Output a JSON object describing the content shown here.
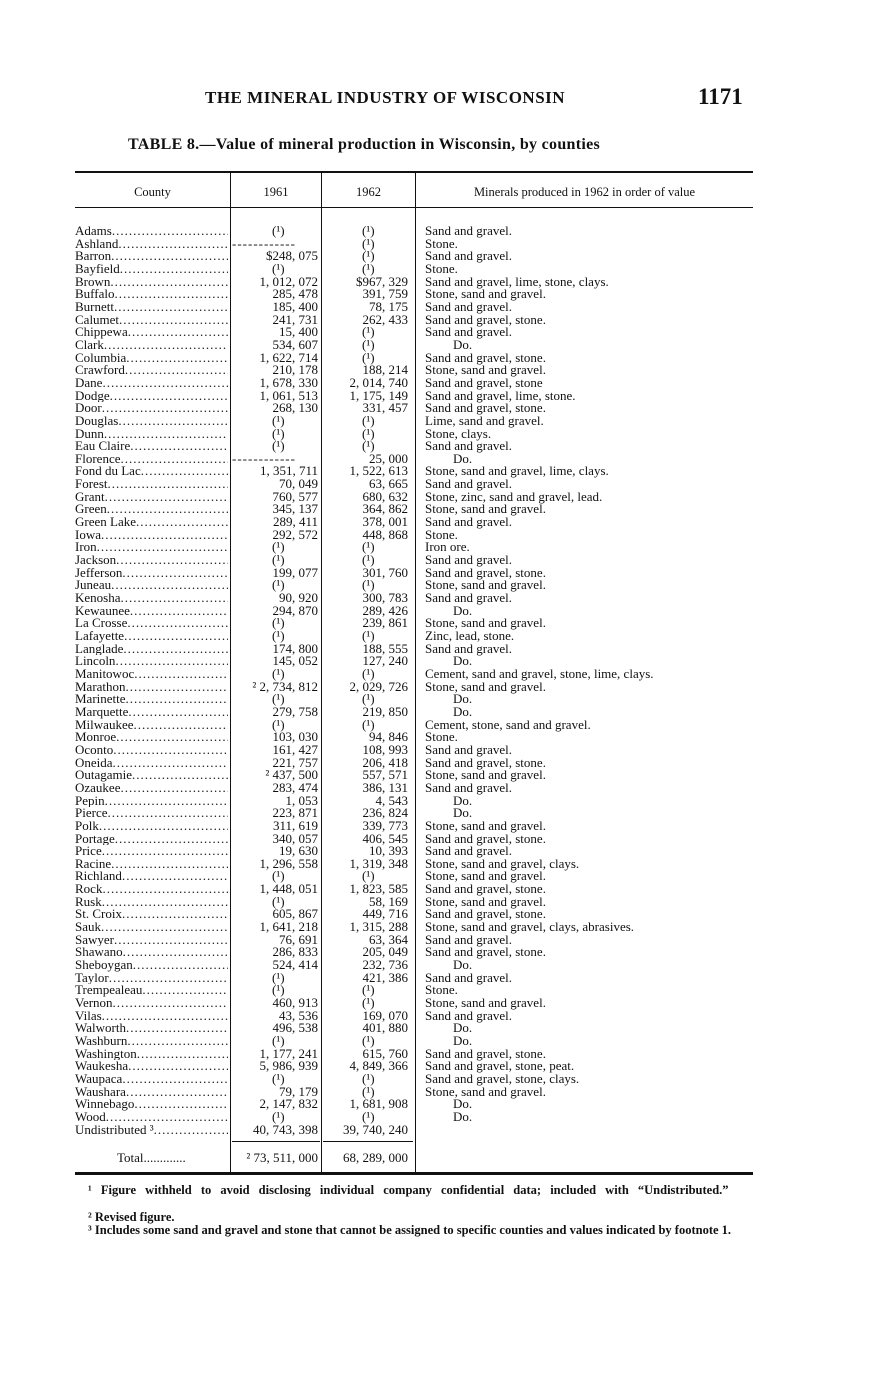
{
  "header": {
    "running_title": "THE MINERAL INDUSTRY OF WISCONSIN",
    "page_number": "1171"
  },
  "table": {
    "title": "TABLE 8.—Value of mineral production in Wisconsin, by counties",
    "columns": [
      "County",
      "1961",
      "1962",
      "Minerals produced in 1962 in order of value"
    ],
    "rows": [
      [
        "Adams",
        "(¹)",
        "(¹)",
        "Sand and gravel."
      ],
      [
        "Ashland",
        "------------",
        "(¹)",
        "Stone."
      ],
      [
        "Barron",
        "$248, 075",
        "(¹)",
        "Sand and gravel."
      ],
      [
        "Bayfield",
        "(¹)",
        "(¹)",
        "Stone."
      ],
      [
        "Brown",
        "1, 012, 072",
        "$967, 329",
        "Sand and gravel, lime, stone, clays."
      ],
      [
        "Buffalo",
        "285, 478",
        "391, 759",
        "Stone, sand and gravel."
      ],
      [
        "Burnett",
        "185, 400",
        "78, 175",
        "Sand and gravel."
      ],
      [
        "Calumet",
        "241, 731",
        "262, 433",
        "Sand and gravel, stone."
      ],
      [
        "Chippewa",
        "15, 400",
        "(¹)",
        "Sand and gravel."
      ],
      [
        "Clark",
        "534, 607",
        "(¹)",
        "Do."
      ],
      [
        "Columbia",
        "1, 622, 714",
        "(¹)",
        "Sand and gravel, stone."
      ],
      [
        "Crawford",
        "210, 178",
        "188, 214",
        "Stone, sand and gravel."
      ],
      [
        "Dane",
        "1, 678, 330",
        "2, 014, 740",
        "Sand and gravel, stone"
      ],
      [
        "Dodge",
        "1, 061, 513",
        "1, 175, 149",
        "Sand and gravel, lime, stone."
      ],
      [
        "Door",
        "268, 130",
        "331, 457",
        "Sand and gravel, stone."
      ],
      [
        "Douglas",
        "(¹)",
        "(¹)",
        "Lime, sand and gravel."
      ],
      [
        "Dunn",
        "(¹)",
        "(¹)",
        "Stone, clays."
      ],
      [
        "Eau Claire",
        "(¹)",
        "(¹)",
        "Sand and gravel."
      ],
      [
        "Florence",
        "------------",
        "25, 000",
        "Do."
      ],
      [
        "Fond du Lac",
        "1, 351, 711",
        "1, 522, 613",
        "Stone, sand and gravel, lime, clays."
      ],
      [
        "Forest",
        "70, 049",
        "63, 665",
        "Sand and gravel."
      ],
      [
        "Grant",
        "760, 577",
        "680, 632",
        "Stone, zinc, sand and gravel, lead."
      ],
      [
        "Green",
        "345, 137",
        "364, 862",
        "Stone, sand and gravel."
      ],
      [
        "Green Lake",
        "289, 411",
        "378, 001",
        "Sand and gravel."
      ],
      [
        "Iowa",
        "292, 572",
        "448, 868",
        "Stone."
      ],
      [
        "Iron",
        "(¹)",
        "(¹)",
        "Iron ore."
      ],
      [
        "Jackson",
        "(¹)",
        "(¹)",
        "Sand and gravel."
      ],
      [
        "Jefferson",
        "199, 077",
        "301, 760",
        "Sand and gravel, stone."
      ],
      [
        "Juneau",
        "(¹)",
        "(¹)",
        "Stone, sand and gravel."
      ],
      [
        "Kenosha",
        "90, 920",
        "300, 783",
        "Sand and gravel."
      ],
      [
        "Kewaunee",
        "294, 870",
        "289, 426",
        "Do."
      ],
      [
        "La Crosse",
        "(¹)",
        "239, 861",
        "Stone, sand and gravel."
      ],
      [
        "Lafayette",
        "(¹)",
        "(¹)",
        "Zinc, lead, stone."
      ],
      [
        "Langlade",
        "174, 800",
        "188, 555",
        "Sand and gravel."
      ],
      [
        "Lincoln",
        "145, 052",
        "127, 240",
        "Do."
      ],
      [
        "Manitowoc",
        "(¹)",
        "(¹)",
        "Cement, sand and gravel, stone, lime, clays."
      ],
      [
        "Marathon",
        "² 2, 734, 812",
        "2, 029, 726",
        "Stone, sand and gravel."
      ],
      [
        "Marinette",
        "(¹)",
        "(¹)",
        "Do."
      ],
      [
        "Marquette",
        "279, 758",
        "219, 850",
        "Do."
      ],
      [
        "Milwaukee",
        "(¹)",
        "(¹)",
        "Cement, stone, sand and gravel."
      ],
      [
        "Monroe",
        "103, 030",
        "94, 846",
        "Stone."
      ],
      [
        "Oconto",
        "161, 427",
        "108, 993",
        "Sand and gravel."
      ],
      [
        "Oneida",
        "221, 757",
        "206, 418",
        "Sand and gravel, stone."
      ],
      [
        "Outagamie",
        "² 437, 500",
        "557, 571",
        "Stone, sand and gravel."
      ],
      [
        "Ozaukee",
        "283, 474",
        "386, 131",
        "Sand and gravel."
      ],
      [
        "Pepin",
        "1, 053",
        "4, 543",
        "Do."
      ],
      [
        "Pierce",
        "223, 871",
        "236, 824",
        "Do."
      ],
      [
        "Polk",
        "311, 619",
        "339, 773",
        "Stone, sand and gravel."
      ],
      [
        "Portage",
        "340, 057",
        "406, 545",
        "Sand and gravel, stone."
      ],
      [
        "Price",
        "19, 630",
        "10, 393",
        "Sand and gravel."
      ],
      [
        "Racine",
        "1, 296, 558",
        "1, 319, 348",
        "Stone, sand and gravel, clays."
      ],
      [
        "Richland",
        "(¹)",
        "(¹)",
        "Stone, sand and gravel."
      ],
      [
        "Rock",
        "1, 448, 051",
        "1, 823, 585",
        "Sand and gravel, stone."
      ],
      [
        "Rusk",
        "(¹)",
        "58, 169",
        "Stone, sand and gravel."
      ],
      [
        "St. Croix",
        "605, 867",
        "449, 716",
        "Sand and gravel, stone."
      ],
      [
        "Sauk",
        "1, 641, 218",
        "1, 315, 288",
        "Stone, sand and gravel, clays, abrasives."
      ],
      [
        "Sawyer",
        "76, 691",
        "63, 364",
        "Sand and gravel."
      ],
      [
        "Shawano",
        "286, 833",
        "205, 049",
        "Sand and gravel, stone."
      ],
      [
        "Sheboygan",
        "524, 414",
        "232, 736",
        "Do."
      ],
      [
        "Taylor",
        "(¹)",
        "421, 386",
        "Sand and gravel."
      ],
      [
        "Trempealeau",
        "(¹)",
        "(¹)",
        "Stone."
      ],
      [
        "Vernon",
        "460, 913",
        "(¹)",
        "Stone, sand and gravel."
      ],
      [
        "Vilas",
        "43, 536",
        "169, 070",
        "Sand and gravel."
      ],
      [
        "Walworth",
        "496, 538",
        "401, 880",
        "Do."
      ],
      [
        "Washburn",
        "(¹)",
        "(¹)",
        "Do."
      ],
      [
        "Washington",
        "1, 177, 241",
        "615, 760",
        "Sand and gravel, stone."
      ],
      [
        "Waukesha",
        "5, 986, 939",
        "4, 849, 366",
        "Sand and gravel, stone, peat."
      ],
      [
        "Waupaca",
        "(¹)",
        "(¹)",
        "Sand and gravel, stone, clays."
      ],
      [
        "Waushara",
        "79, 179",
        "(¹)",
        "Stone, sand and gravel."
      ],
      [
        "Winnebago",
        "2, 147, 832",
        "1, 681, 908",
        "Do."
      ],
      [
        "Wood",
        "(¹)",
        "(¹)",
        "Do."
      ],
      [
        "Undistributed ³",
        "40, 743, 398",
        "39, 740, 240",
        ""
      ]
    ],
    "total": {
      "label": "Total",
      "v1961": "² 73, 511, 000",
      "v1962": "68, 289, 000"
    }
  },
  "footnotes": [
    "¹ Figure withheld to avoid disclosing individual company confidential data; included with “Undistributed.”",
    "² Revised figure.",
    "³ Includes some sand and gravel and stone that cannot be assigned to specific counties and values indicated by footnote 1."
  ]
}
